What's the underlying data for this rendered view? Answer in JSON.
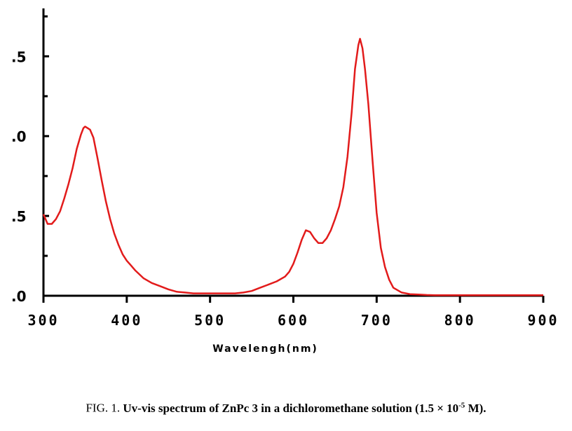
{
  "chart_data": {
    "type": "line",
    "title": "",
    "xlabel": "Wavelengh(nm)",
    "ylabel": "",
    "xlim": [
      300,
      900
    ],
    "ylim": [
      0.0,
      1.8
    ],
    "x_ticks": [
      "300",
      "400",
      "500",
      "600",
      "700",
      "800",
      "900"
    ],
    "y_tick_values": [
      0.0,
      0.5,
      1.0,
      1.5
    ],
    "y_ticks": [
      ".0",
      ".5",
      ".0",
      ".5"
    ],
    "grid": false,
    "series": [
      {
        "color": "#e21b1b",
        "x": [
          300,
          305,
          310,
          315,
          320,
          325,
          330,
          335,
          340,
          345,
          348,
          350,
          353,
          356,
          360,
          365,
          370,
          375,
          380,
          385,
          390,
          395,
          400,
          405,
          410,
          420,
          430,
          440,
          450,
          460,
          470,
          480,
          490,
          500,
          510,
          520,
          530,
          540,
          550,
          560,
          570,
          580,
          590,
          595,
          600,
          605,
          610,
          615,
          620,
          625,
          630,
          635,
          640,
          645,
          650,
          655,
          660,
          665,
          670,
          674,
          678,
          680,
          683,
          686,
          690,
          695,
          700,
          705,
          710,
          715,
          720,
          730,
          740,
          750,
          760,
          770,
          780,
          790,
          800,
          850,
          900
        ],
        "y": [
          0.51,
          0.45,
          0.45,
          0.48,
          0.53,
          0.61,
          0.7,
          0.8,
          0.92,
          1.01,
          1.05,
          1.06,
          1.05,
          1.04,
          0.99,
          0.86,
          0.72,
          0.59,
          0.48,
          0.39,
          0.32,
          0.26,
          0.22,
          0.19,
          0.16,
          0.11,
          0.08,
          0.06,
          0.04,
          0.025,
          0.02,
          0.015,
          0.015,
          0.015,
          0.015,
          0.015,
          0.015,
          0.02,
          0.03,
          0.05,
          0.07,
          0.09,
          0.12,
          0.15,
          0.2,
          0.27,
          0.35,
          0.41,
          0.4,
          0.36,
          0.33,
          0.33,
          0.36,
          0.41,
          0.48,
          0.56,
          0.68,
          0.87,
          1.15,
          1.42,
          1.57,
          1.61,
          1.55,
          1.42,
          1.2,
          0.85,
          0.52,
          0.3,
          0.18,
          0.1,
          0.05,
          0.02,
          0.01,
          0.008,
          0.005,
          0.003,
          0.003,
          0.003,
          0.003,
          0.003,
          0.003
        ]
      }
    ]
  },
  "caption": {
    "prefix": "FIG. 1. ",
    "main": "Uv-vis spectrum of ZnPc 3 in a dichloromethane solution (1.5 × 10",
    "exponent": "-5",
    "suffix": " M)."
  }
}
